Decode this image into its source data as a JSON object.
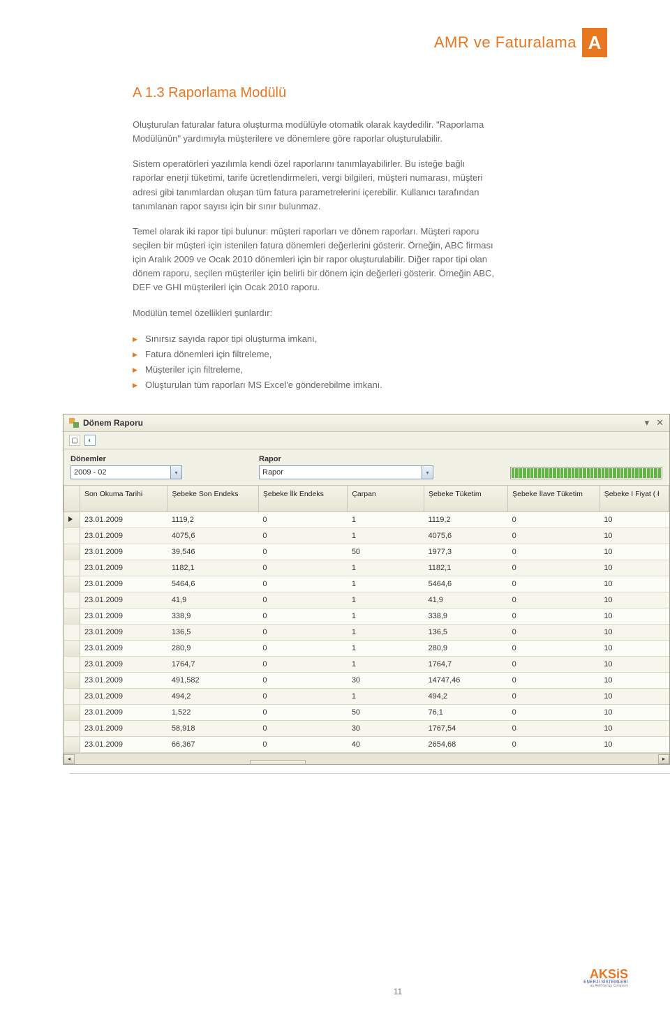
{
  "header": {
    "title": "AMR ve Faturalama",
    "badge": "A"
  },
  "section": {
    "title": "A 1.3 Raporlama Modülü",
    "p1": "Oluşturulan faturalar fatura oluşturma modülüyle otomatik olarak kaydedilir. \"Raporlama Modülünün\" yardımıyla müşterilere ve dönemlere göre raporlar oluşturulabilir.",
    "p2": "Sistem operatörleri yazılımla kendi özel raporlarını tanımlayabilirler. Bu isteğe bağlı raporlar enerji tüketimi, tarife ücretlendirmeleri, vergi bilgileri, müşteri numarası, müşteri adresi gibi tanımlardan oluşan tüm fatura parametrelerini içerebilir. Kullanıcı tarafından tanımlanan rapor sayısı için bir sınır bulunmaz.",
    "p3": "Temel olarak iki rapor tipi bulunur: müşteri raporları ve dönem raporları. Müşteri raporu seçilen bir müşteri için istenilen fatura dönemleri değerlerini gösterir. Örneğin, ABC firması için Aralık 2009 ve Ocak 2010 dönemleri için bir rapor oluşturulabilir. Diğer rapor tipi olan dönem raporu, seçilen müşteriler için belirli bir dönem için değerleri gösterir. Örneğin ABC, DEF ve GHI müşterileri için Ocak 2010 raporu.",
    "p4": "Modülün temel özellikleri şunlardır:",
    "features": [
      "Sınırsız sayıda rapor tipi oluşturma imkanı,",
      "Fatura dönemleri için filtreleme,",
      "Müşteriler için filtreleme,",
      "Oluşturulan tüm raporları MS Excel'e gönderebilme imkanı."
    ]
  },
  "window": {
    "title": "Dönem Raporu",
    "filter_donemler_label": "Dönemler",
    "filter_donemler_value": "2009 - 02",
    "filter_rapor_label": "Rapor",
    "filter_rapor_value": "Rapor",
    "columns": [
      "Son Okuma Tarihi",
      "Şebeke Son Endeks",
      "Şebeke İlk Endeks",
      "Çarpan",
      "Şebeke Tüketim",
      "Şebeke İlave Tüketim",
      "Şebeke I Fiyat ( ł"
    ],
    "col_widths": [
      "22px",
      "120px",
      "125px",
      "122px",
      "105px",
      "115px",
      "126px",
      "95px"
    ],
    "rows": [
      [
        "23.01.2009",
        "1119,2",
        "0",
        "1",
        "1119,2",
        "0",
        "10"
      ],
      [
        "23.01.2009",
        "4075,6",
        "0",
        "1",
        "4075,6",
        "0",
        "10"
      ],
      [
        "23.01.2009",
        "39,546",
        "0",
        "50",
        "1977,3",
        "0",
        "10"
      ],
      [
        "23.01.2009",
        "1182,1",
        "0",
        "1",
        "1182,1",
        "0",
        "10"
      ],
      [
        "23.01.2009",
        "5464,6",
        "0",
        "1",
        "5464,6",
        "0",
        "10"
      ],
      [
        "23.01.2009",
        "41,9",
        "0",
        "1",
        "41,9",
        "0",
        "10"
      ],
      [
        "23.01.2009",
        "338,9",
        "0",
        "1",
        "338,9",
        "0",
        "10"
      ],
      [
        "23.01.2009",
        "136,5",
        "0",
        "1",
        "136,5",
        "0",
        "10"
      ],
      [
        "23.01.2009",
        "280,9",
        "0",
        "1",
        "280,9",
        "0",
        "10"
      ],
      [
        "23.01.2009",
        "1764,7",
        "0",
        "1",
        "1764,7",
        "0",
        "10"
      ],
      [
        "23.01.2009",
        "491,582",
        "0",
        "30",
        "14747,46",
        "0",
        "10"
      ],
      [
        "23.01.2009",
        "494,2",
        "0",
        "1",
        "494,2",
        "0",
        "10"
      ],
      [
        "23.01.2009",
        "1,522",
        "0",
        "50",
        "76,1",
        "0",
        "10"
      ],
      [
        "23.01.2009",
        "58,918",
        "0",
        "30",
        "1767,54",
        "0",
        "10"
      ],
      [
        "23.01.2009",
        "66,367",
        "0",
        "40",
        "2654,68",
        "0",
        "10"
      ]
    ]
  },
  "footer": {
    "page": "11",
    "brand": "AKSiS",
    "sub1": "ENERJİ SİSTEMLERİ",
    "sub2": "an Aktif Group Company"
  }
}
